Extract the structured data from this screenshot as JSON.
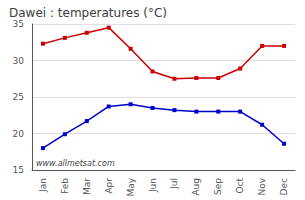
{
  "chart_data": {
    "type": "line",
    "title": "Dawei : temperatures (°C)",
    "categories": [
      "Jan",
      "Feb",
      "Mar",
      "Apr",
      "May",
      "Jun",
      "Jul",
      "Aug",
      "Sep",
      "Oct",
      "Nov",
      "Dec"
    ],
    "series": [
      {
        "color": "#cc0000",
        "values": [
          32.3,
          33.1,
          33.8,
          34.5,
          31.6,
          28.5,
          27.5,
          27.6,
          27.6,
          28.9,
          32.0,
          32.0
        ]
      },
      {
        "color": "#0000cc",
        "values": [
          18.0,
          19.9,
          21.7,
          23.7,
          24.0,
          23.5,
          23.2,
          23.0,
          23.0,
          23.0,
          21.2,
          18.6
        ]
      }
    ],
    "marker": "square",
    "ylim": [
      15,
      35
    ],
    "yticks": [
      15,
      20,
      25,
      30,
      35
    ],
    "grid": true,
    "annotation": "www.allmetsat.com"
  }
}
